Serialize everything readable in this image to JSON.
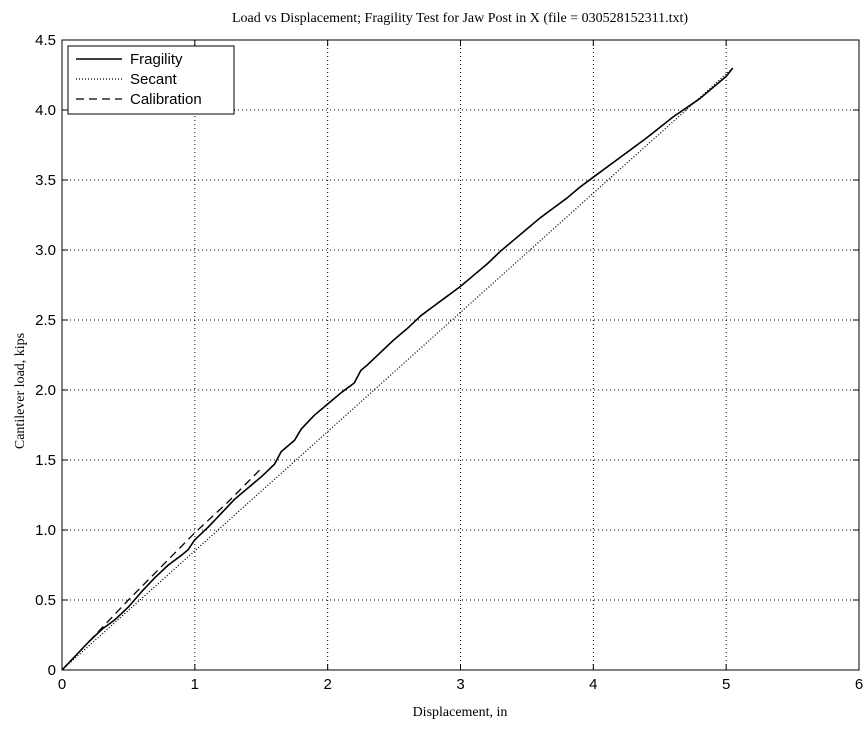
{
  "chart_data": {
    "type": "line",
    "title": "Load vs Displacement; Fragility Test for Jaw Post in X (file = 030528152311.txt)",
    "xlabel": "Displacement, in",
    "ylabel": "Cantilever load, kips",
    "xlim": [
      0,
      6
    ],
    "ylim": [
      0,
      4.5
    ],
    "xticks": [
      0,
      1,
      2,
      3,
      4,
      5,
      6
    ],
    "xtick_labels": [
      "0",
      "1",
      "2",
      "3",
      "4",
      "5",
      "6"
    ],
    "yticks": [
      0,
      0.5,
      1,
      1.5,
      2,
      2.5,
      3,
      3.5,
      4,
      4.5
    ],
    "ytick_labels": [
      "0",
      "0.5",
      "1.0",
      "1.5",
      "2.0",
      "2.5",
      "3.0",
      "3.5",
      "4.0",
      "4.5"
    ],
    "grid": true,
    "legend_position": "top-left",
    "series": [
      {
        "name": "Fragility",
        "style": "solid",
        "x": [
          0,
          0.1,
          0.2,
          0.3,
          0.4,
          0.5,
          0.6,
          0.7,
          0.8,
          0.9,
          0.95,
          1.0,
          1.1,
          1.2,
          1.3,
          1.4,
          1.5,
          1.6,
          1.65,
          1.7,
          1.75,
          1.8,
          1.9,
          2.0,
          2.1,
          2.2,
          2.25,
          2.3,
          2.4,
          2.5,
          2.6,
          2.7,
          2.8,
          2.9,
          3.0,
          3.1,
          3.2,
          3.3,
          3.4,
          3.5,
          3.6,
          3.7,
          3.8,
          3.9,
          4.0,
          4.2,
          4.4,
          4.6,
          4.8,
          5.0,
          5.05
        ],
        "y": [
          0,
          0.1,
          0.2,
          0.29,
          0.36,
          0.45,
          0.56,
          0.66,
          0.75,
          0.82,
          0.86,
          0.93,
          1.02,
          1.12,
          1.22,
          1.3,
          1.38,
          1.47,
          1.56,
          1.6,
          1.64,
          1.72,
          1.82,
          1.9,
          1.98,
          2.05,
          2.14,
          2.18,
          2.27,
          2.36,
          2.44,
          2.53,
          2.6,
          2.67,
          2.74,
          2.82,
          2.9,
          2.99,
          3.07,
          3.15,
          3.23,
          3.3,
          3.37,
          3.45,
          3.52,
          3.66,
          3.8,
          3.95,
          4.08,
          4.24,
          4.3
        ]
      },
      {
        "name": "Secant",
        "style": "dotted",
        "x": [
          0,
          5.05
        ],
        "y": [
          0,
          4.3
        ]
      },
      {
        "name": "Calibration",
        "style": "dashed",
        "x": [
          0,
          0.25,
          0.5,
          0.75,
          1.0,
          1.25,
          1.5
        ],
        "y": [
          0,
          0.25,
          0.5,
          0.74,
          0.98,
          1.2,
          1.44
        ]
      }
    ]
  }
}
